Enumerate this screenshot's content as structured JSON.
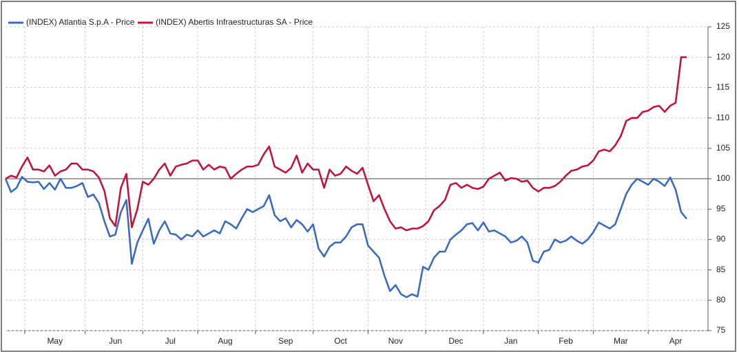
{
  "chart_data": {
    "type": "line",
    "series": [
      {
        "name": "(INDEX) Atlantia S.p.A - Price",
        "color": "#3a6bbf",
        "values": [
          100,
          97.8,
          98.5,
          100.3,
          99.5,
          99.4,
          99.5,
          98.3,
          99.3,
          98.2,
          100,
          98.5,
          98.5,
          98.8,
          99.3,
          97,
          97.4,
          96,
          93,
          90.5,
          90.8,
          94.5,
          96.5,
          86,
          89.5,
          91.5,
          93.4,
          89.3,
          91.5,
          93,
          91,
          90.8,
          90,
          90.8,
          90.5,
          91.5,
          90.5,
          91,
          91.5,
          91,
          93,
          92.5,
          91.8,
          93.5,
          95,
          94.5,
          95,
          95.5,
          97.3,
          94,
          93,
          93.5,
          92,
          93.2,
          92.5,
          91.3,
          92.5,
          88.5,
          87.2,
          88.8,
          89.5,
          89.5,
          90.5,
          92,
          92.5,
          92.5,
          89,
          88,
          87,
          84,
          81.5,
          82.5,
          81,
          80.5,
          81,
          80.6,
          85.5,
          85,
          87,
          88,
          88,
          90,
          90.8,
          91.5,
          92.5,
          92.7,
          91.5,
          92.8,
          91.3,
          91.5,
          91,
          90.5,
          89.5,
          89.8,
          90.5,
          89.5,
          86.5,
          86.2,
          88,
          88.3,
          90,
          89.5,
          89.8,
          90.5,
          89.8,
          89.3,
          90,
          91.2,
          92.8,
          92.3,
          91.8,
          92.5,
          95,
          97.5,
          99,
          100,
          99.5,
          99,
          100,
          99.5,
          98.8,
          100.2,
          98.2,
          94.5,
          93.4
        ]
      },
      {
        "name": "(INDEX) Abertis Infraestructuras SA - Price",
        "color": "#c0143c",
        "values": [
          100,
          100.5,
          100.2,
          102,
          103.5,
          101.5,
          101.5,
          101.2,
          102.2,
          100.5,
          101.2,
          101.5,
          102.5,
          102.5,
          101.5,
          101.5,
          101.2,
          100.2,
          98,
          93.5,
          92.2,
          98.5,
          100.8,
          92,
          95,
          99.5,
          99,
          100,
          101.5,
          102.5,
          100.5,
          102,
          102.3,
          102.5,
          103,
          103,
          101.5,
          102.3,
          101.5,
          102,
          101.8,
          100,
          100.8,
          101.5,
          102,
          102,
          102.3,
          104,
          105.3,
          102,
          101.5,
          101,
          101.8,
          103.8,
          101,
          102.5,
          101.5,
          101.5,
          98.5,
          101.5,
          100.5,
          100.8,
          102,
          101.3,
          100.8,
          101.8,
          99,
          96.3,
          97.3,
          95,
          93,
          91.8,
          92,
          91.5,
          91.8,
          91.8,
          92.2,
          93,
          94.8,
          95.5,
          96.5,
          99,
          99.3,
          98.5,
          99,
          98.5,
          98.3,
          98.7,
          100,
          100.5,
          101,
          99.7,
          100.1,
          100,
          99.5,
          99.7,
          98.5,
          97.9,
          98.5,
          98.5,
          98.8,
          99.5,
          100.5,
          101.3,
          101.5,
          102,
          102.2,
          103,
          104.5,
          104.8,
          104.5,
          105.5,
          107,
          109.5,
          110,
          110,
          111,
          111.2,
          111.8,
          112,
          111,
          112,
          112.5,
          120,
          120
        ]
      }
    ],
    "categories": [
      null,
      null,
      null,
      null,
      null,
      null,
      null,
      null,
      null,
      "May",
      null,
      null,
      null,
      null,
      null,
      null,
      null,
      null,
      null,
      null,
      "Jun",
      null,
      null,
      null,
      null,
      null,
      null,
      null,
      null,
      null,
      "Jul",
      null,
      null,
      null,
      null,
      null,
      null,
      null,
      null,
      null,
      "Aug",
      null,
      null,
      null,
      null,
      null,
      null,
      null,
      null,
      null,
      null,
      "Sep",
      null,
      null,
      null,
      null,
      null,
      null,
      null,
      null,
      null,
      "Oct",
      null,
      null,
      null,
      null,
      null,
      null,
      null,
      null,
      null,
      "Nov",
      null,
      null,
      null,
      null,
      null,
      null,
      null,
      null,
      null,
      null,
      "Dec",
      null,
      null,
      null,
      null,
      null,
      null,
      null,
      null,
      null,
      "Jan",
      null,
      null,
      null,
      null,
      null,
      null,
      null,
      null,
      null,
      "Feb",
      null,
      null,
      null,
      null,
      null,
      null,
      null,
      null,
      null,
      "Mar",
      null,
      null,
      null,
      null,
      null,
      null,
      null,
      null,
      null,
      "Apr",
      null,
      null
    ],
    "ylim": [
      75,
      125
    ],
    "yticks": [
      75,
      80,
      85,
      90,
      95,
      100,
      105,
      110,
      115,
      120,
      125
    ],
    "baseline": 100,
    "grid": true
  }
}
